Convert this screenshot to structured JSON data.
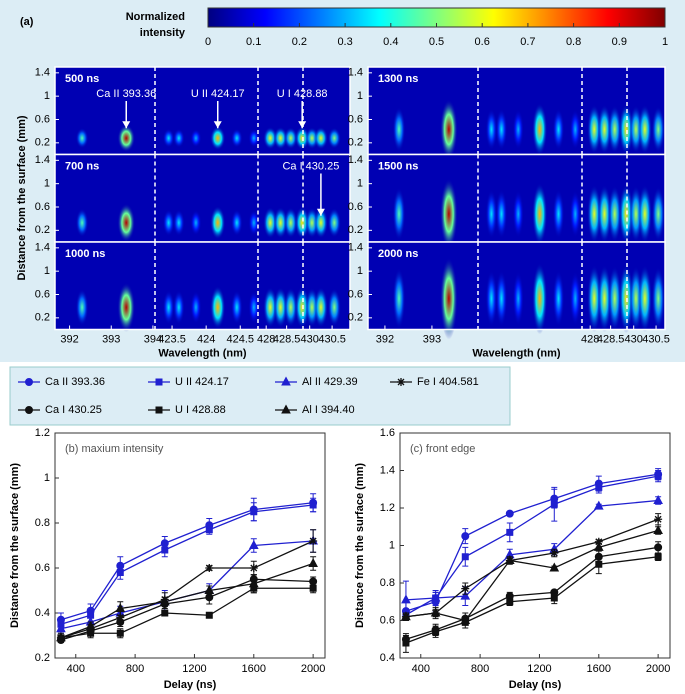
{
  "chart_data": [
    {
      "type": "heatmap",
      "panel_label": "(a)",
      "colorbar_label": "Normalized intensity",
      "zlim": [
        0,
        1
      ],
      "colorbar_ticks": [
        0,
        0.1,
        0.2,
        0.3,
        0.4,
        0.5,
        0.6,
        0.7,
        0.8,
        0.9,
        1
      ],
      "x_label": "Wavelength (nm)",
      "y_label": "Distance from the surface (mm)",
      "ylim": [
        0,
        1.5
      ],
      "yticks": [
        0.2,
        0.6,
        1,
        1.4
      ],
      "peak_wavelengths": [
        392.3,
        393.36,
        423.45,
        423.6,
        423.85,
        424.17,
        424.45,
        424.7,
        428.1,
        428.35,
        428.6,
        428.88,
        430.05,
        430.25,
        430.55
      ],
      "peak_intensity": [
        0.45,
        0.95,
        0.35,
        0.35,
        0.3,
        0.7,
        0.35,
        0.3,
        0.6,
        0.6,
        0.55,
        0.65,
        0.55,
        0.6,
        0.5
      ],
      "sides": [
        {
          "segments": [
            {
              "xlim": [
                391.65,
                394.05
              ],
              "xticks": [
                392,
                393,
                394
              ]
            },
            {
              "xlim": [
                423.25,
                424.76
              ],
              "xticks": [
                423.5,
                424,
                424.5
              ]
            },
            {
              "xlim": [
                427.8,
                428.9
              ],
              "xticks": [
                428,
                428.5
              ]
            },
            {
              "xlim": [
                429.85,
                430.9
              ],
              "xticks": [
                430,
                430.5
              ]
            }
          ],
          "rows": [
            {
              "label": "500 ns",
              "annotations": [
                {
                  "text": "Ca II 393.36",
                  "wavelength": 393.36
                },
                {
                  "text": "U II 424.17",
                  "wavelength": 424.17
                },
                {
                  "text": "U I 428.88",
                  "wavelength": 428.88
                }
              ]
            },
            {
              "label": "700 ns",
              "annotations": [
                {
                  "text": "Ca I 430.25",
                  "wavelength": 430.25
                }
              ]
            },
            {
              "label": "1000 ns"
            }
          ]
        },
        {
          "segments": [
            {
              "xlim": [
                391.64,
                393.98
              ],
              "xticks": [
                392,
                393
              ]
            },
            {
              "xlim": [
                423.25,
                424.8
              ],
              "xticks": []
            },
            {
              "xlim": [
                427.8,
                428.9
              ],
              "xticks": [
                428,
                428.5
              ]
            },
            {
              "xlim": [
                429.85,
                430.7
              ],
              "xticks": [
                430,
                430.5
              ]
            }
          ],
          "rows": [
            {
              "label": "1300 ns"
            },
            {
              "label": "1500 ns"
            },
            {
              "label": "2000 ns"
            }
          ]
        }
      ]
    },
    {
      "type": "line",
      "title": "(b) maxium intensity",
      "x_label": "Delay (ns)",
      "y_label": "Distance from the surface (mm)",
      "x": [
        300,
        500,
        700,
        1000,
        1300,
        1600,
        2000
      ],
      "xlim": [
        260,
        2080
      ],
      "xticks": [
        400,
        800,
        1200,
        1600,
        2000
      ],
      "ylim": [
        0.2,
        1.2
      ],
      "yticks": [
        0.2,
        0.4,
        0.6,
        0.8,
        1,
        1.2
      ],
      "series": [
        {
          "name": "Ca II 393.36",
          "color": "#2020d0",
          "marker": "o",
          "values": [
            0.37,
            0.41,
            0.61,
            0.71,
            0.79,
            0.86,
            0.89
          ],
          "errors": [
            0.03,
            0.03,
            0.04,
            0.03,
            0.03,
            0.05,
            0.04
          ]
        },
        {
          "name": "U II 424.17",
          "color": "#2020d0",
          "marker": "s",
          "values": [
            0.35,
            0.39,
            0.58,
            0.68,
            0.77,
            0.85,
            0.88
          ],
          "errors": [
            0.02,
            0.03,
            0.03,
            0.03,
            0.02,
            0.04,
            0.03
          ]
        },
        {
          "name": "Al II 429.39",
          "color": "#2020d0",
          "marker": "^",
          "values": [
            0.33,
            0.36,
            0.4,
            0.45,
            0.5,
            0.7,
            0.72
          ],
          "errors": [
            0.02,
            0.02,
            0.03,
            0.05,
            0.03,
            0.03,
            0.05
          ]
        },
        {
          "name": "Fe I 404.581",
          "color": "#111111",
          "marker": "*",
          "values": [
            0.29,
            0.33,
            0.38,
            0.46,
            0.6,
            0.6,
            0.72
          ],
          "errors": [
            0.02,
            0.02,
            0.03,
            0.03,
            0.01,
            0.03,
            0.05
          ]
        },
        {
          "name": "Ca I 430.25",
          "color": "#111111",
          "marker": "o",
          "values": [
            0.28,
            0.32,
            0.36,
            0.44,
            0.47,
            0.55,
            0.54
          ],
          "errors": [
            0.01,
            0.02,
            0.02,
            0.02,
            0.03,
            0.02,
            0.02
          ]
        },
        {
          "name": "U I 428.88",
          "color": "#111111",
          "marker": "s",
          "values": [
            0.29,
            0.31,
            0.31,
            0.4,
            0.39,
            0.51,
            0.51
          ],
          "errors": [
            0.01,
            0.02,
            0.02,
            0.01,
            0.005,
            0.02,
            0.02
          ]
        },
        {
          "name": "Al I 394.40",
          "color": "#111111",
          "marker": "^",
          "values": [
            0.29,
            0.34,
            0.42,
            0.45,
            0.5,
            0.53,
            0.62
          ],
          "errors": [
            0.01,
            0.02,
            0.03,
            0.02,
            0.02,
            0.04,
            0.03
          ]
        }
      ]
    },
    {
      "type": "line",
      "title": "(c) front edge",
      "x_label": "Delay (ns)",
      "y_label": "Distance from the surface (mm)",
      "x": [
        300,
        500,
        700,
        1000,
        1300,
        1600,
        2000
      ],
      "xlim": [
        260,
        2080
      ],
      "xticks": [
        400,
        800,
        1200,
        1600,
        2000
      ],
      "ylim": [
        0.4,
        1.6
      ],
      "yticks": [
        0.4,
        0.6,
        0.8,
        1,
        1.2,
        1.4,
        1.6
      ],
      "series": [
        {
          "color": "#2020d0",
          "marker": "o",
          "values": [
            0.65,
            0.7,
            1.05,
            1.17,
            1.25,
            1.33,
            1.38
          ],
          "errors": [
            0.05,
            0.05,
            0.04,
            0.01,
            0.05,
            0.04,
            0.03
          ]
        },
        {
          "color": "#2020d0",
          "marker": "s",
          "values": [
            0.63,
            0.72,
            0.94,
            1.07,
            1.22,
            1.31,
            1.37
          ],
          "errors": [
            0.01,
            0.03,
            0.05,
            0.05,
            0.09,
            0.03,
            0.03
          ]
        },
        {
          "color": "#2020d0",
          "marker": "^",
          "values": [
            0.71,
            0.72,
            0.73,
            0.95,
            0.98,
            1.21,
            1.24
          ],
          "errors": [
            0.1,
            0.04,
            0.05,
            0.03,
            0.03,
            0.01,
            0.02
          ]
        },
        {
          "color": "#111111",
          "marker": "*",
          "values": [
            0.62,
            0.64,
            0.77,
            0.92,
            0.96,
            1.02,
            1.14
          ],
          "errors": [
            0.02,
            0.02,
            0.03,
            0.02,
            0.02,
            0.01,
            0.03
          ]
        },
        {
          "color": "#111111",
          "marker": "o",
          "values": [
            0.5,
            0.55,
            0.61,
            0.73,
            0.75,
            0.94,
            0.99
          ],
          "errors": [
            0.02,
            0.03,
            0.03,
            0.02,
            0.01,
            0.05,
            0.03
          ]
        },
        {
          "color": "#111111",
          "marker": "s",
          "values": [
            0.48,
            0.54,
            0.59,
            0.7,
            0.72,
            0.9,
            0.94
          ],
          "errors": [
            0.05,
            0.03,
            0.03,
            0.02,
            0.03,
            0.05,
            0.02
          ]
        },
        {
          "color": "#111111",
          "marker": "^",
          "values": [
            0.62,
            0.64,
            0.6,
            0.92,
            0.88,
            0.99,
            1.08
          ],
          "errors": [
            0.02,
            0.03,
            0.02,
            0.01,
            0.01,
            0.02,
            0.02
          ]
        }
      ]
    }
  ]
}
